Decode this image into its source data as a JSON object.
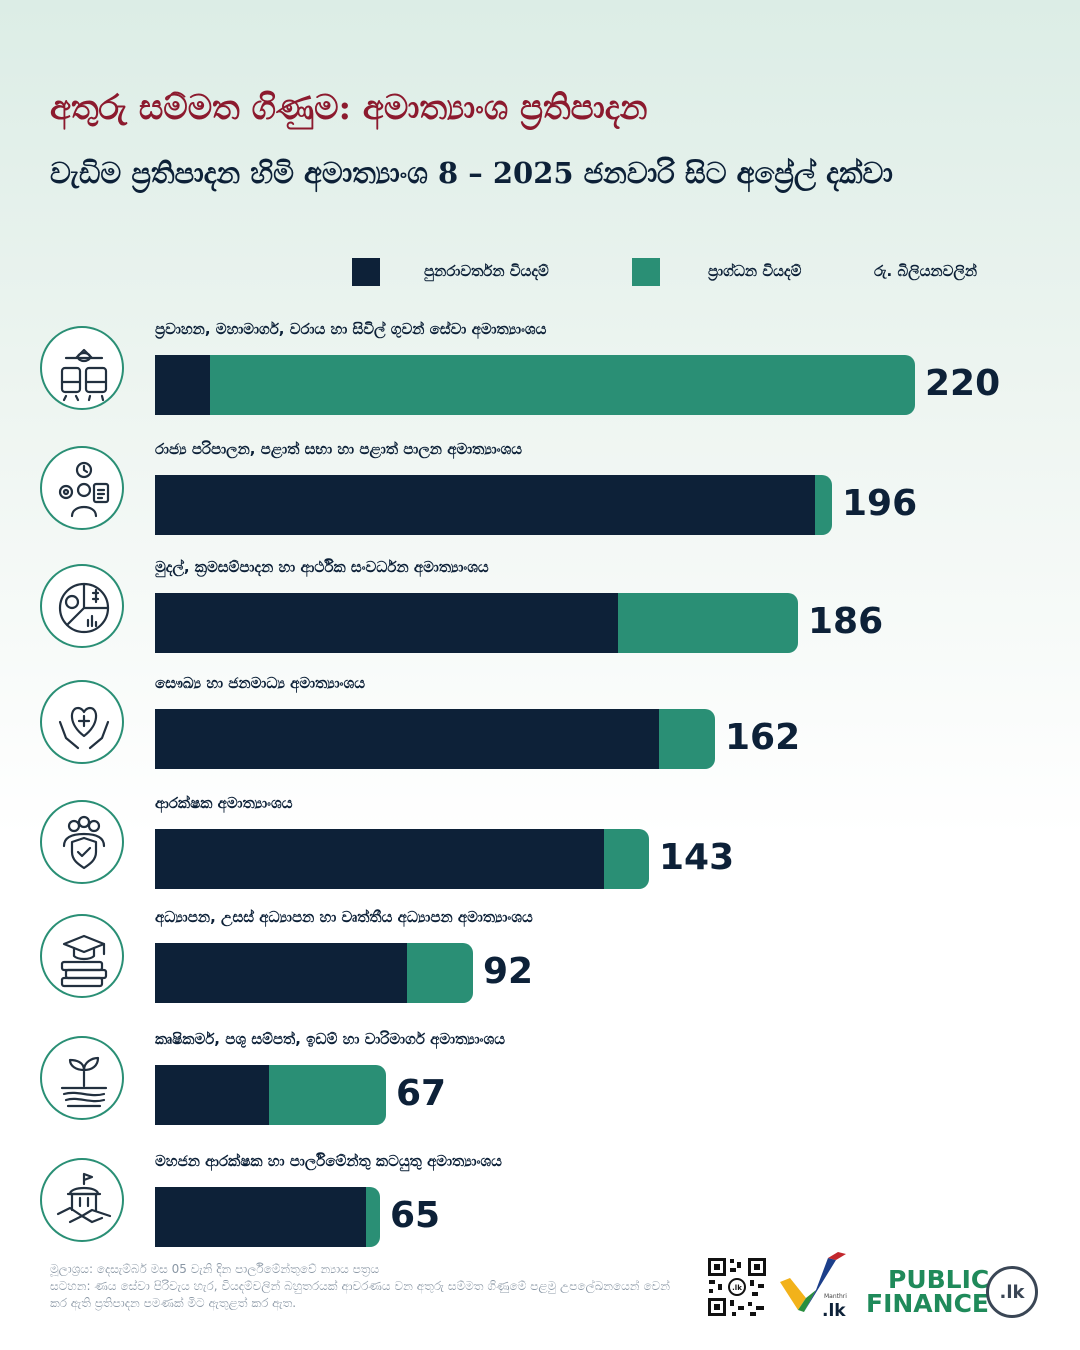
{
  "title": "අතුරු සම්මත ගිණුම: අමාත්‍යාංශ ප්‍රතිපාදන",
  "subtitle": "වැඩිම ප්‍රතිපාදන හිමි අමාත්‍යාංශ 8 – 2025 ජනවාරි සිට අප්‍රේල් දක්වා",
  "legend": {
    "recurrent": "පුනරාවර්තන වියදම්",
    "capital": "ප්‍රාග්ධන වියදම්",
    "unit": "රු. බිලියනවලින්"
  },
  "colors": {
    "recurrent": "#0d2138",
    "capital": "#2a8f75",
    "title": "#8c1a2e"
  },
  "chart_data": {
    "type": "bar",
    "orientation": "horizontal",
    "stacked": true,
    "title": "අතුරු සම්මත ගිණුම: අමාත්‍යාංශ ප්‍රතිපාදන",
    "subtitle": "වැඩිම ප්‍රතිපාදන හිමි අමාත්‍යාංශ 8 – 2025 ජනවාරි සිට අප්‍රේල් දක්වා",
    "unit": "රු. බිලියනවලින්",
    "legend_position": "top-right",
    "categories": [
      "ප්‍රවාහන, මහාමාර්ග, වරාය හා සිවිල් ගුවන් සේවා අමාත්‍යාංශය",
      "රාජ්‍ය පරිපාලන, පළාත් සභා හා පළාත් පාලන අමාත්‍යාංශය",
      "මුදල්, ක්‍රමසම්පාදන හා ආර්ථික සංවර්ධන අමාත්‍යාංශය",
      "සෞඛ්‍ය හා ජනමාධ්‍ය අමාත්‍යාංශය",
      "ආරක්ෂක අමාත්‍යාංශය",
      "අධ්‍යාපන, උසස් අධ්‍යාපන හා වෘත්තීය අධ්‍යාපන අමාත්‍යාංශය",
      "කෘෂිකර්ම, පශු සම්පත්, ඉඩම් හා වාරිමාර්ග අමාත්‍යාංශය",
      "මහජන ආරක්ෂක හා පාර්ලිමේන්තු කටයුතු අමාත්‍යාංශය"
    ],
    "icons": [
      "transport-icon",
      "public-admin-icon",
      "finance-icon",
      "health-icon",
      "defence-icon",
      "education-icon",
      "agriculture-icon",
      "public-security-icon"
    ],
    "totals": [
      220,
      196,
      186,
      162,
      143,
      92,
      67,
      65
    ],
    "series": [
      {
        "name": "පුනරාවර්තන වියදම්",
        "values": [
          16,
          191,
          134,
          146,
          130,
          73,
          33,
          61
        ]
      },
      {
        "name": "ප්‍රාග්ධන වියදම්",
        "values": [
          204,
          5,
          52,
          16,
          13,
          19,
          34,
          4
        ]
      }
    ],
    "xlim": [
      0,
      220
    ]
  },
  "footer": {
    "source": "මූලාශ්‍රය: දෙසැම්බර් මස 05 වැනි දින පාර්ලිමේන්තුවේ න්‍යාය පත්‍රය",
    "note": "සටහන: ණය සේවා පිරිවැය හැර, වියදම්වලින් බහුතරයක් ආවරණය වන අතුරු සම්මත ගිණුමේ පළමු උපලේඛනයෙන් වෙන් කර ඇති ප්‍රතිපාදන පමණක් මිට ඇතුළත් කර ඇත."
  },
  "branding": {
    "manthri_small": "Manthri",
    "manthri_lk": ".lk",
    "public": "PUBLIC",
    "finance": "FINANCE",
    "badge": ".lk"
  }
}
